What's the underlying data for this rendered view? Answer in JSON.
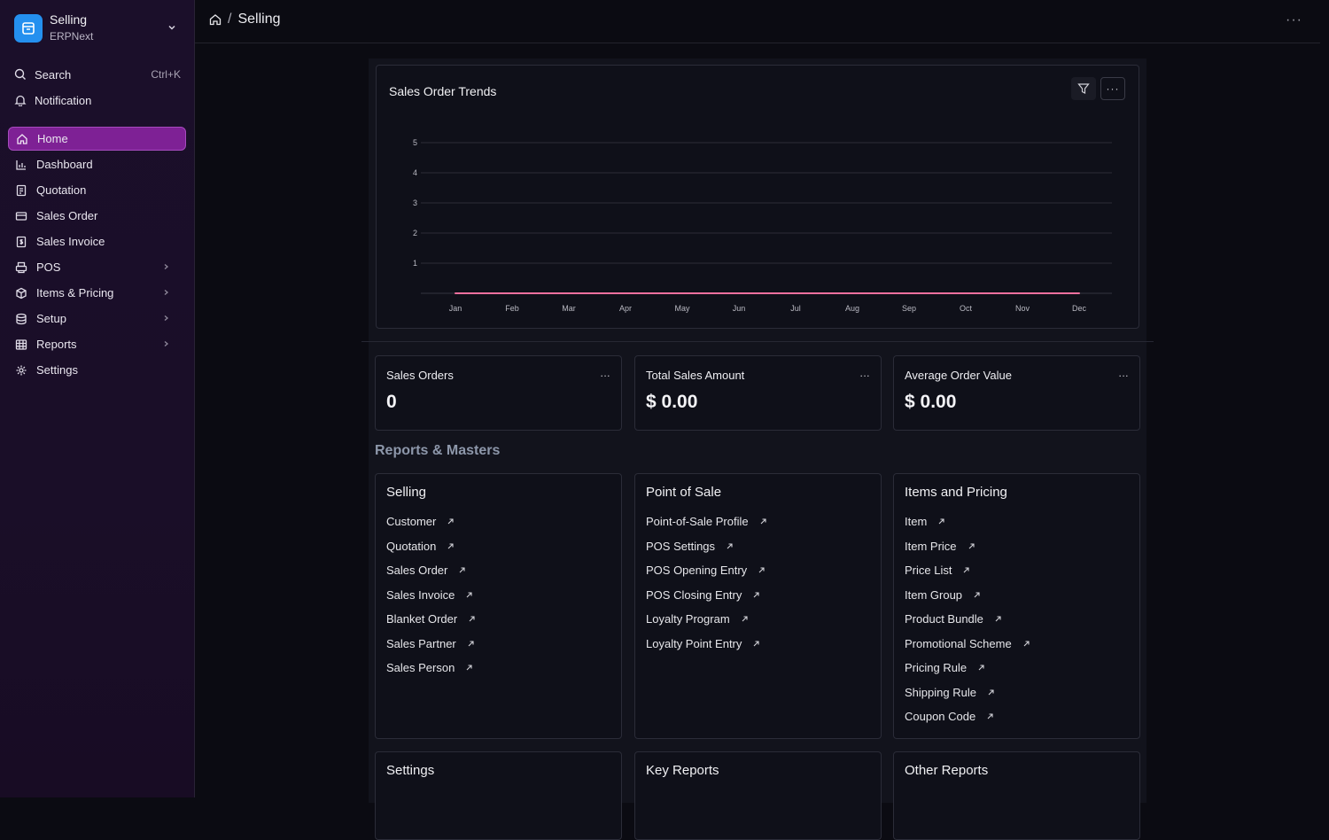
{
  "workspace": {
    "title": "Selling",
    "subtitle": "ERPNext"
  },
  "utilities": {
    "search_label": "Search",
    "search_shortcut": "Ctrl+K",
    "notification_label": "Notification"
  },
  "nav": [
    {
      "label": "Home",
      "icon": "home-icon",
      "active": true
    },
    {
      "label": "Dashboard",
      "icon": "bar-chart-icon"
    },
    {
      "label": "Quotation",
      "icon": "document-icon"
    },
    {
      "label": "Sales Order",
      "icon": "card-icon"
    },
    {
      "label": "Sales Invoice",
      "icon": "invoice-icon"
    },
    {
      "label": "POS",
      "icon": "printer-icon",
      "expandable": true
    },
    {
      "label": "Items & Pricing",
      "icon": "box-icon",
      "expandable": true
    },
    {
      "label": "Setup",
      "icon": "database-icon",
      "expandable": true
    },
    {
      "label": "Reports",
      "icon": "table-icon",
      "expandable": true
    },
    {
      "label": "Settings",
      "icon": "gear-icon"
    }
  ],
  "breadcrumb": {
    "separator": "/",
    "current": "Selling"
  },
  "chart": {
    "title": "Sales Order Trends"
  },
  "chart_data": {
    "type": "line",
    "title": "Sales Order Trends",
    "categories": [
      "Jan",
      "Feb",
      "Mar",
      "Apr",
      "May",
      "Jun",
      "Jul",
      "Aug",
      "Sep",
      "Oct",
      "Nov",
      "Dec"
    ],
    "series": [
      {
        "values": [
          0,
          0,
          0,
          0,
          0,
          0,
          0,
          0,
          0,
          0,
          0,
          0
        ],
        "color": "#f4709f"
      }
    ],
    "yticks": [
      "1",
      "2",
      "3",
      "4",
      "5"
    ],
    "ylim": [
      0,
      5
    ],
    "grid": true
  },
  "number_cards": [
    {
      "label": "Sales Orders",
      "value": "0",
      "more": "..."
    },
    {
      "label": "Total Sales Amount",
      "value": "$ 0.00",
      "more": "..."
    },
    {
      "label": "Average Order Value",
      "value": "$ 0.00",
      "more": "..."
    }
  ],
  "section_title": "Reports & Masters",
  "link_cards": [
    {
      "title": "Selling",
      "links": [
        "Customer",
        "Quotation",
        "Sales Order",
        "Sales Invoice",
        "Blanket Order",
        "Sales Partner",
        "Sales Person"
      ]
    },
    {
      "title": "Point of Sale",
      "links": [
        "Point-of-Sale Profile",
        "POS Settings",
        "POS Opening Entry",
        "POS Closing Entry",
        "Loyalty Program",
        "Loyalty Point Entry"
      ]
    },
    {
      "title": "Items and Pricing",
      "links": [
        "Item",
        "Item Price",
        "Price List",
        "Item Group",
        "Product Bundle",
        "Promotional Scheme",
        "Pricing Rule",
        "Shipping Rule",
        "Coupon Code"
      ]
    },
    {
      "title": "Settings",
      "links": []
    },
    {
      "title": "Key Reports",
      "links": []
    },
    {
      "title": "Other Reports",
      "links": []
    }
  ],
  "colors": {
    "accent": "#7e2195",
    "brand": "#2490ef",
    "line": "#f4709f"
  }
}
